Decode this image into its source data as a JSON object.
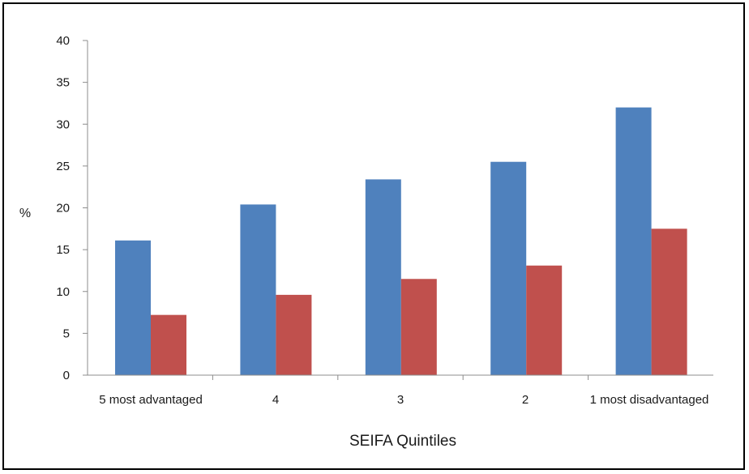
{
  "chart_data": {
    "type": "bar",
    "categories": [
      "5 most advantaged",
      "4",
      "3",
      "2",
      "1 most disadvantaged"
    ],
    "series": [
      {
        "color": "#4f81bd",
        "values": [
          16.1,
          20.4,
          23.4,
          25.5,
          32.0
        ]
      },
      {
        "color": "#c0504d",
        "values": [
          7.2,
          9.6,
          11.5,
          13.1,
          17.5
        ]
      }
    ],
    "title": "",
    "xlabel": "SEIFA Quintiles",
    "ylabel": "%",
    "ylim": [
      0,
      40
    ],
    "yticks": [
      "0",
      "5",
      "10",
      "15",
      "20",
      "25",
      "30",
      "35",
      "40"
    ],
    "grid": false,
    "legend": "none"
  }
}
